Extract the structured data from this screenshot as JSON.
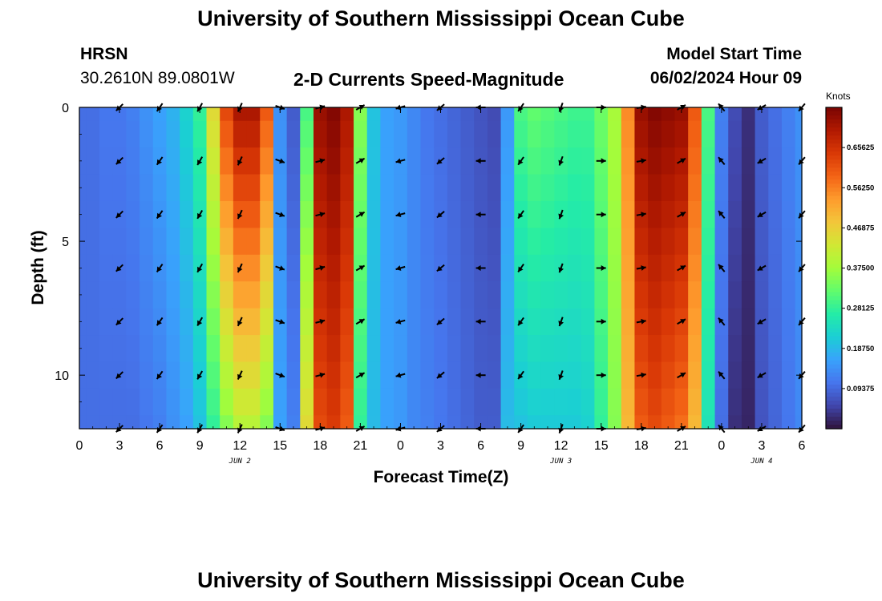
{
  "page_title": "University of Southern Mississippi Ocean Cube",
  "station": "HRSN",
  "coordinates": "30.2610N  89.0801W",
  "plot_title": "2-D Currents Speed-Magnitude",
  "model_start_label": "Model Start Time",
  "model_start_value": "06/02/2024 Hour 09",
  "footer_title": "University of Southern Mississippi Ocean Cube",
  "colors": {
    "scale": [
      "#30123b",
      "#4146ac",
      "#4675ed",
      "#39a2fc",
      "#1bcfd4",
      "#24eca6",
      "#61fc6c",
      "#a4fc3b",
      "#d1e834",
      "#f3c63a",
      "#fe9b2d",
      "#f36315",
      "#d93806",
      "#b11901",
      "#7a0402"
    ],
    "arrow": "#000000"
  },
  "chart_data": {
    "type": "heatmap",
    "title": "2-D Currents Speed-Magnitude",
    "xlabel": "Forecast Time(Z)",
    "ylabel": "Depth (ft)",
    "units": "Knots",
    "x_tick_labels": [
      "0",
      "3",
      "6",
      "9",
      "12",
      "15",
      "18",
      "21",
      "0",
      "3",
      "6",
      "9",
      "12",
      "15",
      "18",
      "21",
      "0",
      "3",
      "6"
    ],
    "x_tick_hours": [
      0,
      3,
      6,
      9,
      12,
      15,
      18,
      21,
      24,
      27,
      30,
      33,
      36,
      39,
      42,
      45,
      48,
      51,
      54
    ],
    "x_range_hours": [
      0,
      54
    ],
    "date_labels": [
      {
        "label": "JUN 2",
        "hour": 12
      },
      {
        "label": "JUN 3",
        "hour": 36
      },
      {
        "label": "JUN 4",
        "hour": 51
      }
    ],
    "y_tick_labels": [
      "0",
      "5",
      "10"
    ],
    "y_tick_values": [
      0,
      5,
      10
    ],
    "y_range_ft": [
      0,
      12
    ],
    "colorbar_labels": [
      "0.65625",
      "0.56250",
      "0.46875",
      "0.37500",
      "0.28125",
      "0.18750",
      "0.09375"
    ],
    "colorbar_values": [
      0.65625,
      0.5625,
      0.46875,
      0.375,
      0.28125,
      0.1875,
      0.09375
    ],
    "colorbar_range": [
      0,
      0.75
    ],
    "depths_ft": [
      0,
      1,
      2,
      3,
      4,
      5,
      6,
      7,
      8,
      9,
      10,
      11,
      12
    ],
    "hour_columns": [
      0,
      1,
      2,
      3,
      4,
      5,
      6,
      7,
      8,
      9,
      10,
      11,
      12,
      13,
      14,
      15,
      16,
      17,
      18,
      19,
      20,
      21,
      22,
      23,
      24,
      25,
      26,
      27,
      28,
      29,
      30,
      31,
      32,
      33,
      34,
      35,
      36,
      37,
      38,
      39,
      40,
      41,
      42,
      43,
      44,
      45,
      46,
      47,
      48,
      49,
      50,
      51,
      52,
      53,
      54
    ],
    "surface_speed_knots": [
      0.1,
      0.1,
      0.11,
      0.11,
      0.12,
      0.14,
      0.16,
      0.18,
      0.22,
      0.28,
      0.45,
      0.62,
      0.7,
      0.7,
      0.6,
      0.14,
      0.08,
      0.3,
      0.72,
      0.74,
      0.7,
      0.35,
      0.2,
      0.16,
      0.15,
      0.13,
      0.11,
      0.1,
      0.09,
      0.08,
      0.07,
      0.06,
      0.15,
      0.3,
      0.32,
      0.31,
      0.3,
      0.29,
      0.29,
      0.33,
      0.38,
      0.55,
      0.72,
      0.74,
      0.73,
      0.72,
      0.6,
      0.3,
      0.12,
      0.06,
      0.03,
      0.08,
      0.1,
      0.12,
      0.14
    ],
    "bottom_speed_knots": [
      0.1,
      0.1,
      0.1,
      0.1,
      0.1,
      0.11,
      0.12,
      0.14,
      0.16,
      0.2,
      0.28,
      0.35,
      0.4,
      0.4,
      0.35,
      0.16,
      0.12,
      0.45,
      0.62,
      0.64,
      0.6,
      0.28,
      0.19,
      0.16,
      0.15,
      0.13,
      0.12,
      0.11,
      0.1,
      0.09,
      0.08,
      0.08,
      0.19,
      0.2,
      0.21,
      0.21,
      0.21,
      0.21,
      0.22,
      0.28,
      0.35,
      0.5,
      0.6,
      0.62,
      0.6,
      0.58,
      0.5,
      0.25,
      0.1,
      0.03,
      0.02,
      0.07,
      0.09,
      0.11,
      0.13
    ],
    "arrow_hours": [
      3,
      6,
      9,
      12,
      15,
      18,
      21,
      24,
      27,
      30,
      33,
      36,
      39,
      42,
      45,
      48,
      51,
      54
    ],
    "arrow_depths_ft": [
      0,
      2,
      4,
      6,
      8,
      10,
      12
    ],
    "arrow_direction_deg": [
      225,
      215,
      210,
      205,
      110,
      75,
      60,
      255,
      230,
      270,
      215,
      200,
      90,
      80,
      60,
      320,
      240,
      220
    ]
  }
}
